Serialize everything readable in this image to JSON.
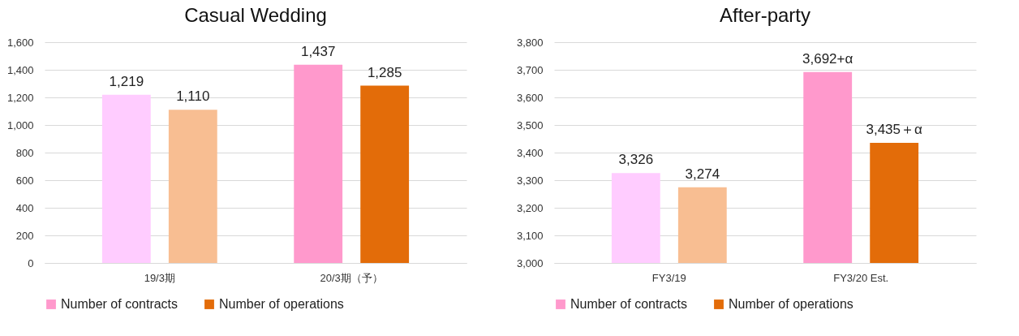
{
  "chart_data": [
    {
      "type": "bar",
      "title": "Casual Wedding",
      "categories": [
        "19/3期",
        "20/3期（予）"
      ],
      "series": [
        {
          "name": "Number of contracts",
          "color": "#ff99cc",
          "colors": [
            "#ffccff",
            "#ff99cc"
          ],
          "values": [
            1219,
            1437
          ],
          "value_labels": [
            "1,219",
            "1,437"
          ]
        },
        {
          "name": "Number of operations",
          "color": "#e36c09",
          "colors": [
            "#f8be92",
            "#e36c09"
          ],
          "values": [
            1110,
            1285
          ],
          "value_labels": [
            "1,110",
            "1,285"
          ]
        }
      ],
      "ylim": [
        0,
        1600
      ],
      "yticks": [
        0,
        {
          "value": 200,
          "label": "200"
        },
        {
          "value": 400,
          "label": "400"
        },
        {
          "value": 600,
          "label": "600"
        },
        {
          "value": 800,
          "label": "800"
        },
        {
          "value": 1000,
          "label": "1,000"
        },
        {
          "value": 1200,
          "label": "1,200"
        },
        {
          "value": 1400,
          "label": "1,400"
        },
        {
          "value": 1600,
          "label": "1,600"
        }
      ],
      "grid": "y",
      "legend": "bottom"
    },
    {
      "type": "bar",
      "title": "After-party",
      "categories": [
        "FY3/19",
        "FY3/20 Est."
      ],
      "series": [
        {
          "name": "Number of contracts",
          "color": "#ff99cc",
          "colors": [
            "#ffccff",
            "#ff99cc"
          ],
          "values": [
            3326,
            3692
          ],
          "value_labels": [
            "3,326",
            "3,692+α"
          ]
        },
        {
          "name": "Number of operations",
          "color": "#e36c09",
          "colors": [
            "#f8be92",
            "#e36c09"
          ],
          "values": [
            3274,
            3435
          ],
          "value_labels": [
            "3,274",
            "3,435＋α"
          ]
        }
      ],
      "ylim": [
        3000,
        3800
      ],
      "yticks": [
        {
          "value": 3000,
          "label": "3,000"
        },
        {
          "value": 3100,
          "label": "3,100"
        },
        {
          "value": 3200,
          "label": "3,200"
        },
        {
          "value": 3300,
          "label": "3,300"
        },
        {
          "value": 3400,
          "label": "3,400"
        },
        {
          "value": 3500,
          "label": "3,500"
        },
        {
          "value": 3600,
          "label": "3,600"
        },
        {
          "value": 3700,
          "label": "3,700"
        },
        {
          "value": 3800,
          "label": "3,800"
        }
      ],
      "grid": "y",
      "legend": "bottom"
    }
  ]
}
